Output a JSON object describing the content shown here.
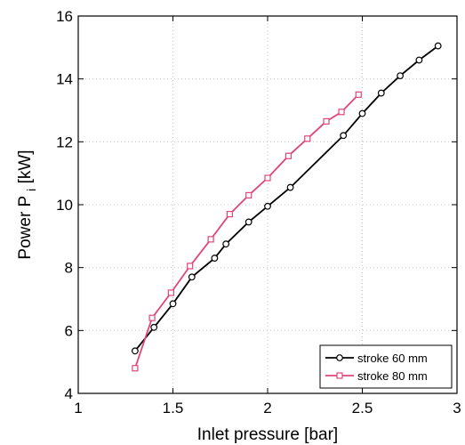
{
  "chart_data": {
    "type": "line",
    "xlabel": "Inlet pressure [bar]",
    "ylabel": {
      "main": "Power  P",
      "subscript": "i",
      "unit": "[kW]"
    },
    "xlim": [
      1,
      3
    ],
    "ylim": [
      4,
      16
    ],
    "xticks": [
      1,
      1.5,
      2,
      2.5,
      3
    ],
    "yticks": [
      4,
      6,
      8,
      10,
      12,
      14,
      16
    ],
    "grid": true,
    "legend_position": "bottom-right",
    "series": [
      {
        "name": "stroke 60 mm",
        "color": "#000000",
        "marker": "circle",
        "x": [
          1.3,
          1.4,
          1.5,
          1.6,
          1.72,
          1.78,
          1.9,
          2.0,
          2.12,
          2.4,
          2.5,
          2.6,
          2.7,
          2.8,
          2.9
        ],
        "y": [
          5.35,
          6.1,
          6.85,
          7.7,
          8.3,
          8.75,
          9.45,
          9.95,
          10.55,
          12.2,
          12.9,
          13.55,
          14.1,
          14.6,
          15.05
        ]
      },
      {
        "name": "stroke 80 mm",
        "color": "#e0457b",
        "marker": "square",
        "x": [
          1.3,
          1.39,
          1.49,
          1.59,
          1.7,
          1.8,
          1.9,
          2.0,
          2.11,
          2.21,
          2.31,
          2.39,
          2.48
        ],
        "y": [
          4.8,
          6.4,
          7.2,
          8.05,
          8.9,
          9.7,
          10.3,
          10.85,
          11.55,
          12.1,
          12.65,
          12.95,
          13.5
        ]
      }
    ]
  }
}
